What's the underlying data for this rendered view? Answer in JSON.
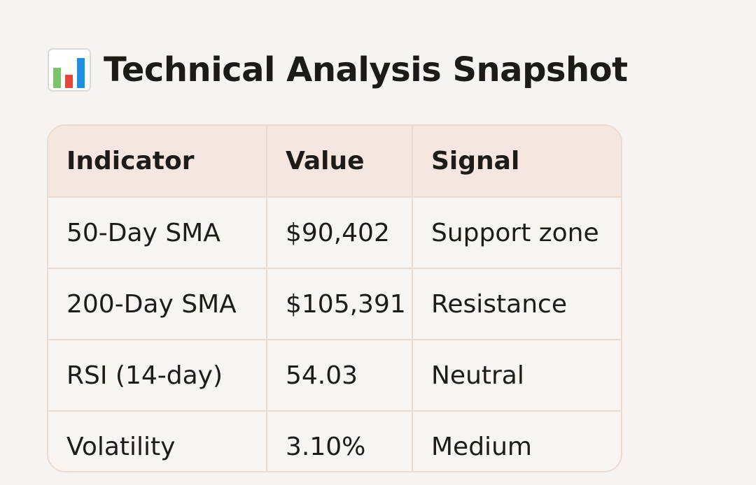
{
  "heading": {
    "icon": "bar-chart-icon",
    "title": "Technical Analysis Snapshot"
  },
  "table": {
    "headers": [
      "Indicator",
      "Value",
      "Signal"
    ],
    "rows": [
      [
        "50-Day SMA",
        "$90,402",
        "Support zone"
      ],
      [
        "200-Day SMA",
        "$105,391",
        "Resistance"
      ],
      [
        "RSI (14-day)",
        "54.03",
        "Neutral"
      ],
      [
        "Volatility",
        "3.10%",
        "Medium"
      ]
    ]
  },
  "colors": {
    "background": "#f7f3f0",
    "header_bg": "#f5e7df",
    "border": "#eadbd1",
    "text": "#1f1b18",
    "icon_green": "#7cc36b",
    "icon_red": "#e8463a",
    "icon_blue": "#1e8fe0"
  }
}
